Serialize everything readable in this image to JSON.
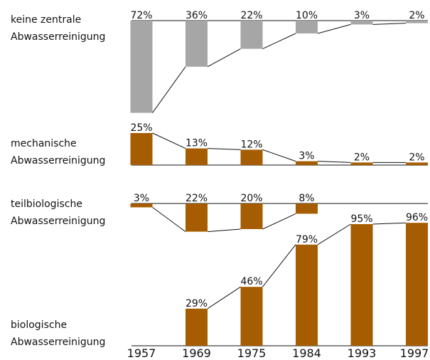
{
  "chart_data": {
    "type": "bar",
    "categories": [
      "1957",
      "1969",
      "1975",
      "1984",
      "1993",
      "1997"
    ],
    "series": [
      {
        "name": "keine zentrale Abwasserreinigung",
        "color": "#a6a6a6",
        "direction": "down",
        "values": [
          72,
          36,
          22,
          10,
          3,
          2
        ],
        "value_labels": [
          "72%",
          "36%",
          "22%",
          "10%",
          "3%",
          "2%"
        ]
      },
      {
        "name": "mechanische Abwasserreinigung",
        "color": "#a65c00",
        "direction": "up",
        "values": [
          25,
          13,
          12,
          3,
          2,
          2
        ],
        "value_labels": [
          "25%",
          "13%",
          "12%",
          "3%",
          "2%",
          "2%"
        ]
      },
      {
        "name": "teilbiologische Abwasserreinigung",
        "color": "#a65c00",
        "direction": "down",
        "values": [
          3,
          22,
          20,
          8,
          null,
          null
        ],
        "value_labels": [
          "3%",
          "22%",
          "20%",
          "8%",
          null,
          null
        ]
      },
      {
        "name": "biologische Abwasserreinigung",
        "color": "#a65c00",
        "direction": "up",
        "values": [
          null,
          29,
          46,
          79,
          95,
          96
        ],
        "value_labels": [
          null,
          "29%",
          "46%",
          "79%",
          "95%",
          "96%"
        ]
      }
    ]
  }
}
